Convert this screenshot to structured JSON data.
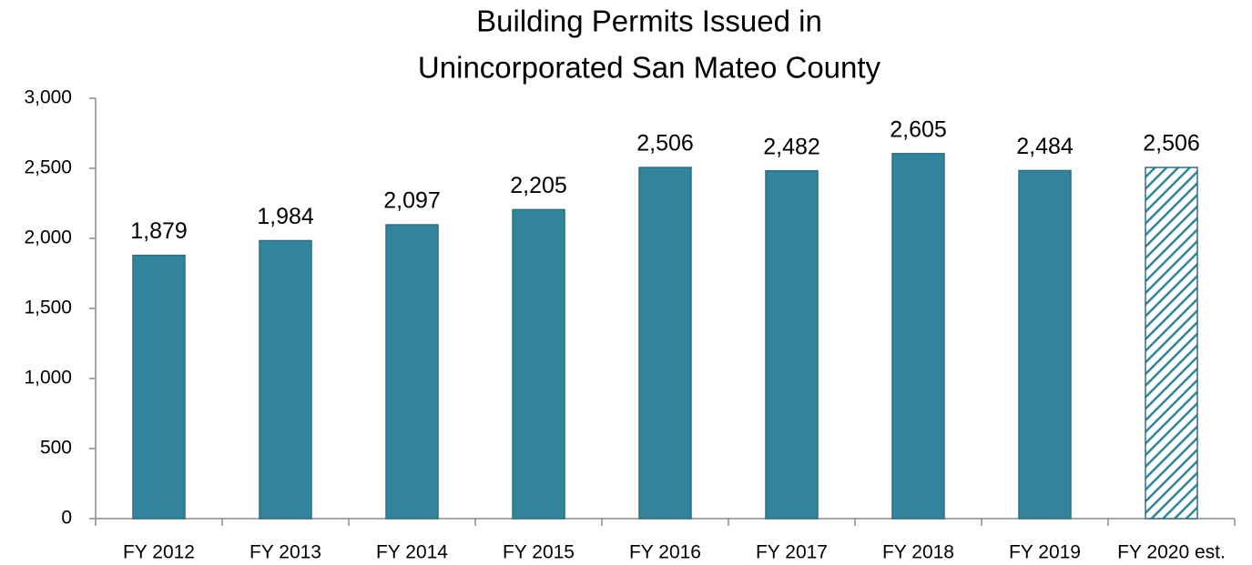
{
  "chart_data": {
    "type": "bar",
    "title": [
      "Building Permits Issued in",
      "Unincorporated San Mateo County"
    ],
    "categories": [
      "FY 2012",
      "FY 2013",
      "FY 2014",
      "FY 2015",
      "FY 2016",
      "FY 2017",
      "FY 2018",
      "FY 2019",
      "FY 2020 est."
    ],
    "values": [
      1879,
      1984,
      2097,
      2205,
      2506,
      2482,
      2605,
      2484,
      2506
    ],
    "value_labels": [
      "1,879",
      "1,984",
      "2,097",
      "2,205",
      "2,506",
      "2,482",
      "2,605",
      "2,484",
      "2,506"
    ],
    "hatched": [
      false,
      false,
      false,
      false,
      false,
      false,
      false,
      false,
      true
    ],
    "color": "#31849b",
    "ylim": [
      0,
      3000
    ],
    "yticks": [
      0,
      500,
      {
        "value": 1000,
        "label": "1,000"
      },
      {
        "value": 1500,
        "label": "1,500"
      },
      {
        "value": 2000,
        "label": "2,000"
      },
      {
        "value": 2500,
        "label": "2,500"
      },
      {
        "value": 3000,
        "label": "3,000"
      }
    ],
    "grid": false
  }
}
